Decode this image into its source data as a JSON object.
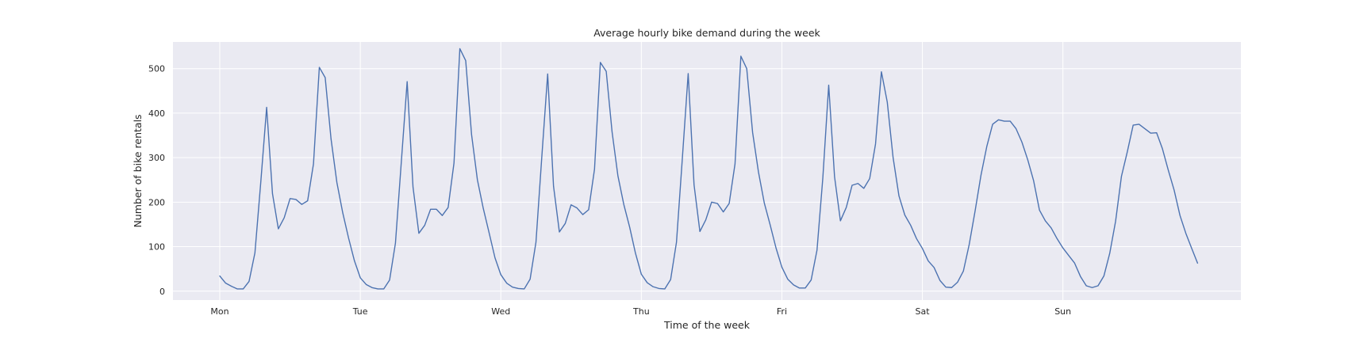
{
  "chart_data": {
    "type": "line",
    "title": "Average hourly bike demand during the week",
    "xlabel": "Time of the week",
    "ylabel": "Number of bike rentals",
    "xlim": [
      -10,
      218
    ],
    "ylim": [
      -20,
      560
    ],
    "x_ticks": [
      {
        "x": 0,
        "label": "Mon"
      },
      {
        "x": 30,
        "label": "Tue"
      },
      {
        "x": 60,
        "label": "Wed"
      },
      {
        "x": 90,
        "label": "Thu"
      },
      {
        "x": 120,
        "label": "Fri"
      },
      {
        "x": 150,
        "label": "Sat"
      },
      {
        "x": 180,
        "label": "Sun"
      }
    ],
    "y_ticks": [
      0,
      100,
      200,
      300,
      400,
      500
    ],
    "grid": true,
    "line_color": "#4c72b0",
    "background_color": "#eaeaf2",
    "series": [
      {
        "x_start": 0,
        "x_step": 1.25,
        "values": [
          34,
          18,
          11,
          5,
          5,
          22,
          86,
          245,
          413,
          219,
          140,
          165,
          208,
          206,
          195,
          203,
          286,
          503,
          480,
          342,
          244,
          176,
          119,
          68,
          30,
          15,
          8,
          5,
          5,
          25,
          108,
          290,
          471,
          234,
          130,
          148,
          184,
          184,
          170,
          188,
          288,
          545,
          518,
          352,
          250,
          186,
          131,
          75,
          37,
          18,
          9,
          6,
          5,
          27,
          110,
          302,
          488,
          236,
          133,
          152,
          194,
          187,
          172,
          183,
          274,
          514,
          494,
          358,
          259,
          195,
          144,
          85,
          38,
          19,
          10,
          6,
          5,
          26,
          110,
          298,
          489,
          239,
          134,
          160,
          200,
          197,
          178,
          197,
          286,
          528,
          500,
          357,
          268,
          198,
          149,
          97,
          54,
          27,
          14,
          7,
          7,
          25,
          92,
          255,
          463,
          257,
          158,
          188,
          238,
          242,
          231,
          253,
          331,
          493,
          425,
          300,
          214,
          171,
          148,
          118,
          96,
          68,
          53,
          24,
          9,
          8,
          20,
          45,
          105,
          180,
          260,
          325,
          375,
          385,
          382,
          382,
          365,
          335,
          295,
          248,
          182,
          158,
          142,
          118,
          97,
          80,
          63,
          33,
          12,
          8,
          12,
          34,
          85,
          157,
          258,
          313,
          373,
          375,
          365,
          355,
          356,
          320,
          272,
          227,
          170,
          130,
          96,
          63
        ]
      }
    ]
  }
}
